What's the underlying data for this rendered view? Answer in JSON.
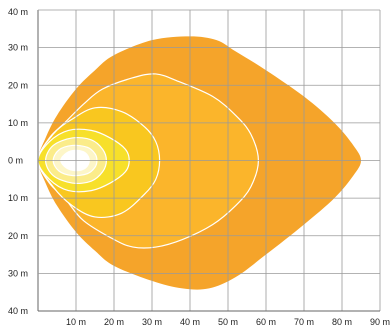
{
  "chart_data": {
    "type": "area",
    "title": "",
    "xlabel": "",
    "ylabel": "",
    "xlim": [
      0,
      90
    ],
    "ylim": [
      -40,
      40
    ],
    "grid": true,
    "x_ticks": [
      "10 m",
      "20 m",
      "30 m",
      "40 m",
      "50 m",
      "60 m",
      "70 m",
      "80 m",
      "90 m"
    ],
    "y_ticks": [
      "40 m",
      "30 m",
      "20 m",
      "10 m",
      "0 m",
      "10 m",
      "20 m",
      "30 m",
      "40 m"
    ],
    "series": [
      {
        "color": "#f5a42a",
        "points": [
          [
            0,
            0
          ],
          [
            2,
            6
          ],
          [
            5,
            12
          ],
          [
            10,
            19
          ],
          [
            15,
            24
          ],
          [
            20,
            28
          ],
          [
            30,
            32
          ],
          [
            40,
            33
          ],
          [
            47,
            32
          ],
          [
            52,
            29
          ],
          [
            60,
            24
          ],
          [
            70,
            17
          ],
          [
            78,
            10
          ],
          [
            83,
            4
          ],
          [
            85,
            0
          ],
          [
            83,
            -4
          ],
          [
            78,
            -10
          ],
          [
            70,
            -17
          ],
          [
            60,
            -25
          ],
          [
            52,
            -31
          ],
          [
            45,
            -34
          ],
          [
            38,
            -34
          ],
          [
            30,
            -32
          ],
          [
            20,
            -28
          ],
          [
            15,
            -24
          ],
          [
            10,
            -19
          ],
          [
            5,
            -12
          ],
          [
            2,
            -6
          ]
        ]
      },
      {
        "color": "#fbb52b",
        "points": [
          [
            0,
            0
          ],
          [
            3,
            6
          ],
          [
            7,
            10
          ],
          [
            12,
            15
          ],
          [
            17,
            19
          ],
          [
            25,
            22
          ],
          [
            31,
            23
          ],
          [
            37,
            21
          ],
          [
            46,
            17
          ],
          [
            52,
            12
          ],
          [
            56,
            7
          ],
          [
            58,
            0
          ],
          [
            56,
            -7
          ],
          [
            52,
            -12
          ],
          [
            46,
            -17
          ],
          [
            38,
            -21
          ],
          [
            31,
            -23
          ],
          [
            25,
            -23
          ],
          [
            20,
            -21
          ],
          [
            12,
            -16
          ],
          [
            7,
            -10
          ],
          [
            3,
            -6
          ]
        ]
      },
      {
        "color": "#f9c71f",
        "points": [
          [
            0,
            0
          ],
          [
            4,
            7
          ],
          [
            9,
            11
          ],
          [
            15,
            14
          ],
          [
            22,
            13
          ],
          [
            28,
            9
          ],
          [
            31,
            5
          ],
          [
            32,
            0
          ],
          [
            31,
            -5
          ],
          [
            28,
            -9
          ],
          [
            22,
            -14
          ],
          [
            15,
            -15
          ],
          [
            9,
            -12
          ],
          [
            4,
            -7
          ]
        ]
      },
      {
        "color": "#f7e02a",
        "points": [
          [
            0,
            0
          ],
          [
            3,
            5
          ],
          [
            8,
            8
          ],
          [
            14,
            8
          ],
          [
            19,
            6
          ],
          [
            23,
            3
          ],
          [
            24,
            0
          ],
          [
            23,
            -3
          ],
          [
            19,
            -6
          ],
          [
            14,
            -8
          ],
          [
            8,
            -8
          ],
          [
            3,
            -5
          ]
        ]
      },
      {
        "color": "#fbec8a",
        "points": [
          [
            2,
            0
          ],
          [
            4,
            4
          ],
          [
            9,
            6
          ],
          [
            14,
            5.5
          ],
          [
            17,
            3
          ],
          [
            18,
            0
          ],
          [
            17,
            -3
          ],
          [
            14,
            -5.5
          ],
          [
            9,
            -6
          ],
          [
            4,
            -4
          ]
        ]
      },
      {
        "color": "#fdf6c8",
        "points": [
          [
            4,
            0
          ],
          [
            5.5,
            2.8
          ],
          [
            9,
            4
          ],
          [
            13,
            3.5
          ],
          [
            15,
            1.8
          ],
          [
            15.5,
            0
          ],
          [
            15,
            -1.8
          ],
          [
            13,
            -3.5
          ],
          [
            9,
            -4
          ],
          [
            5.5,
            -2.8
          ]
        ]
      },
      {
        "color": "#ffffff",
        "points": [
          [
            6,
            0
          ],
          [
            7.5,
            2
          ],
          [
            10,
            2.7
          ],
          [
            12.5,
            2
          ],
          [
            13.5,
            0
          ],
          [
            12.5,
            -2
          ],
          [
            10,
            -2.7
          ],
          [
            7.5,
            -2
          ]
        ]
      }
    ]
  }
}
